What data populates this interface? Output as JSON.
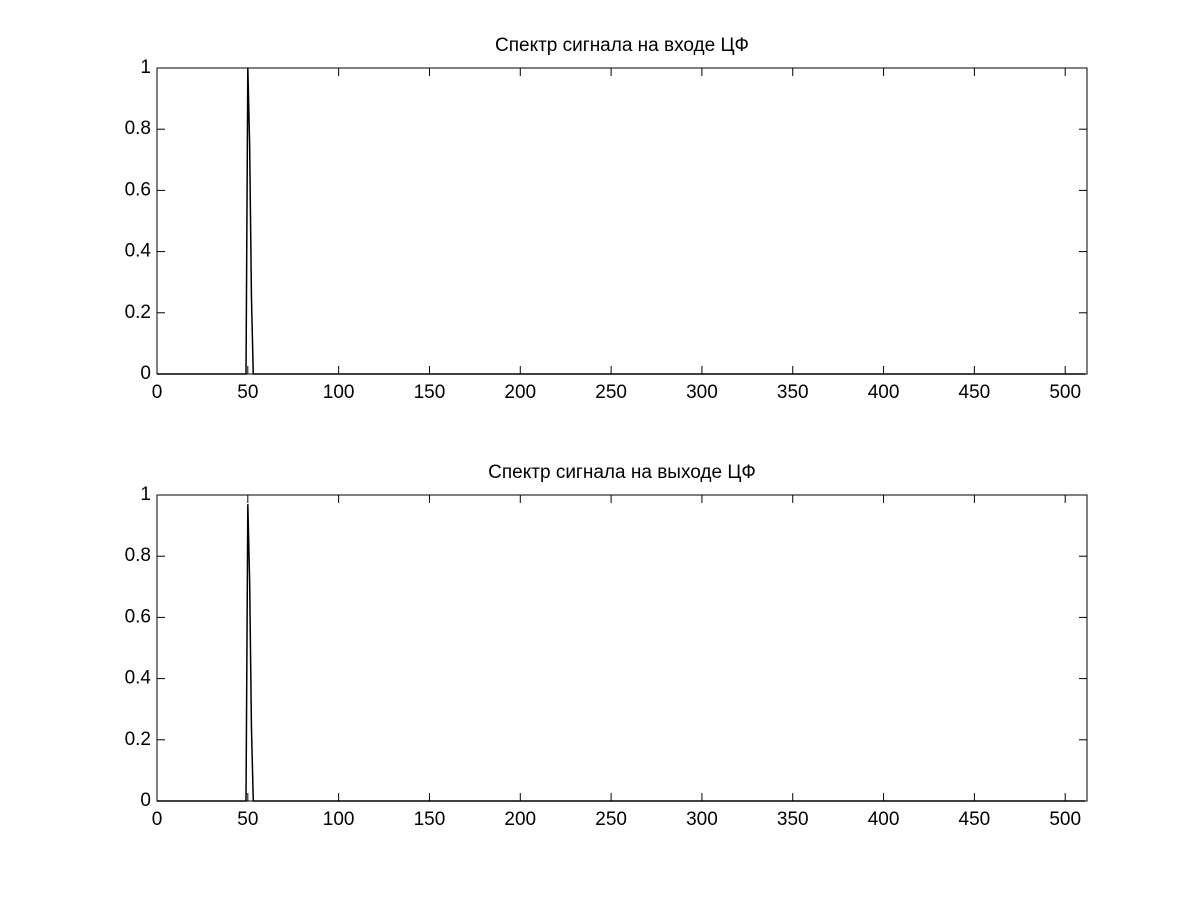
{
  "chart_data": [
    {
      "type": "line",
      "title": "Спектр сигнала на входе ЦФ",
      "x": [
        0,
        49,
        50,
        51,
        52,
        53,
        511
      ],
      "values": [
        0,
        0,
        1,
        0.75,
        0.25,
        0,
        0
      ],
      "color": "#000000",
      "xlim": [
        0,
        512
      ],
      "ylim": [
        0,
        1
      ],
      "xticks": [
        0,
        50,
        100,
        150,
        200,
        250,
        300,
        350,
        400,
        450,
        500
      ],
      "yticks": [
        0,
        0.2,
        0.4,
        0.6,
        0.8,
        1
      ]
    },
    {
      "type": "line",
      "title": "Спектр сигнала на выходе ЦФ",
      "x": [
        0,
        49,
        50,
        51,
        52,
        53,
        511
      ],
      "values": [
        0,
        0,
        0.97,
        0.72,
        0.24,
        0,
        0
      ],
      "color": "#000000",
      "xlim": [
        0,
        512
      ],
      "ylim": [
        0,
        1
      ],
      "xticks": [
        0,
        50,
        100,
        150,
        200,
        250,
        300,
        350,
        400,
        450,
        500
      ],
      "yticks": [
        0,
        0.2,
        0.4,
        0.6,
        0.8,
        1
      ]
    }
  ]
}
